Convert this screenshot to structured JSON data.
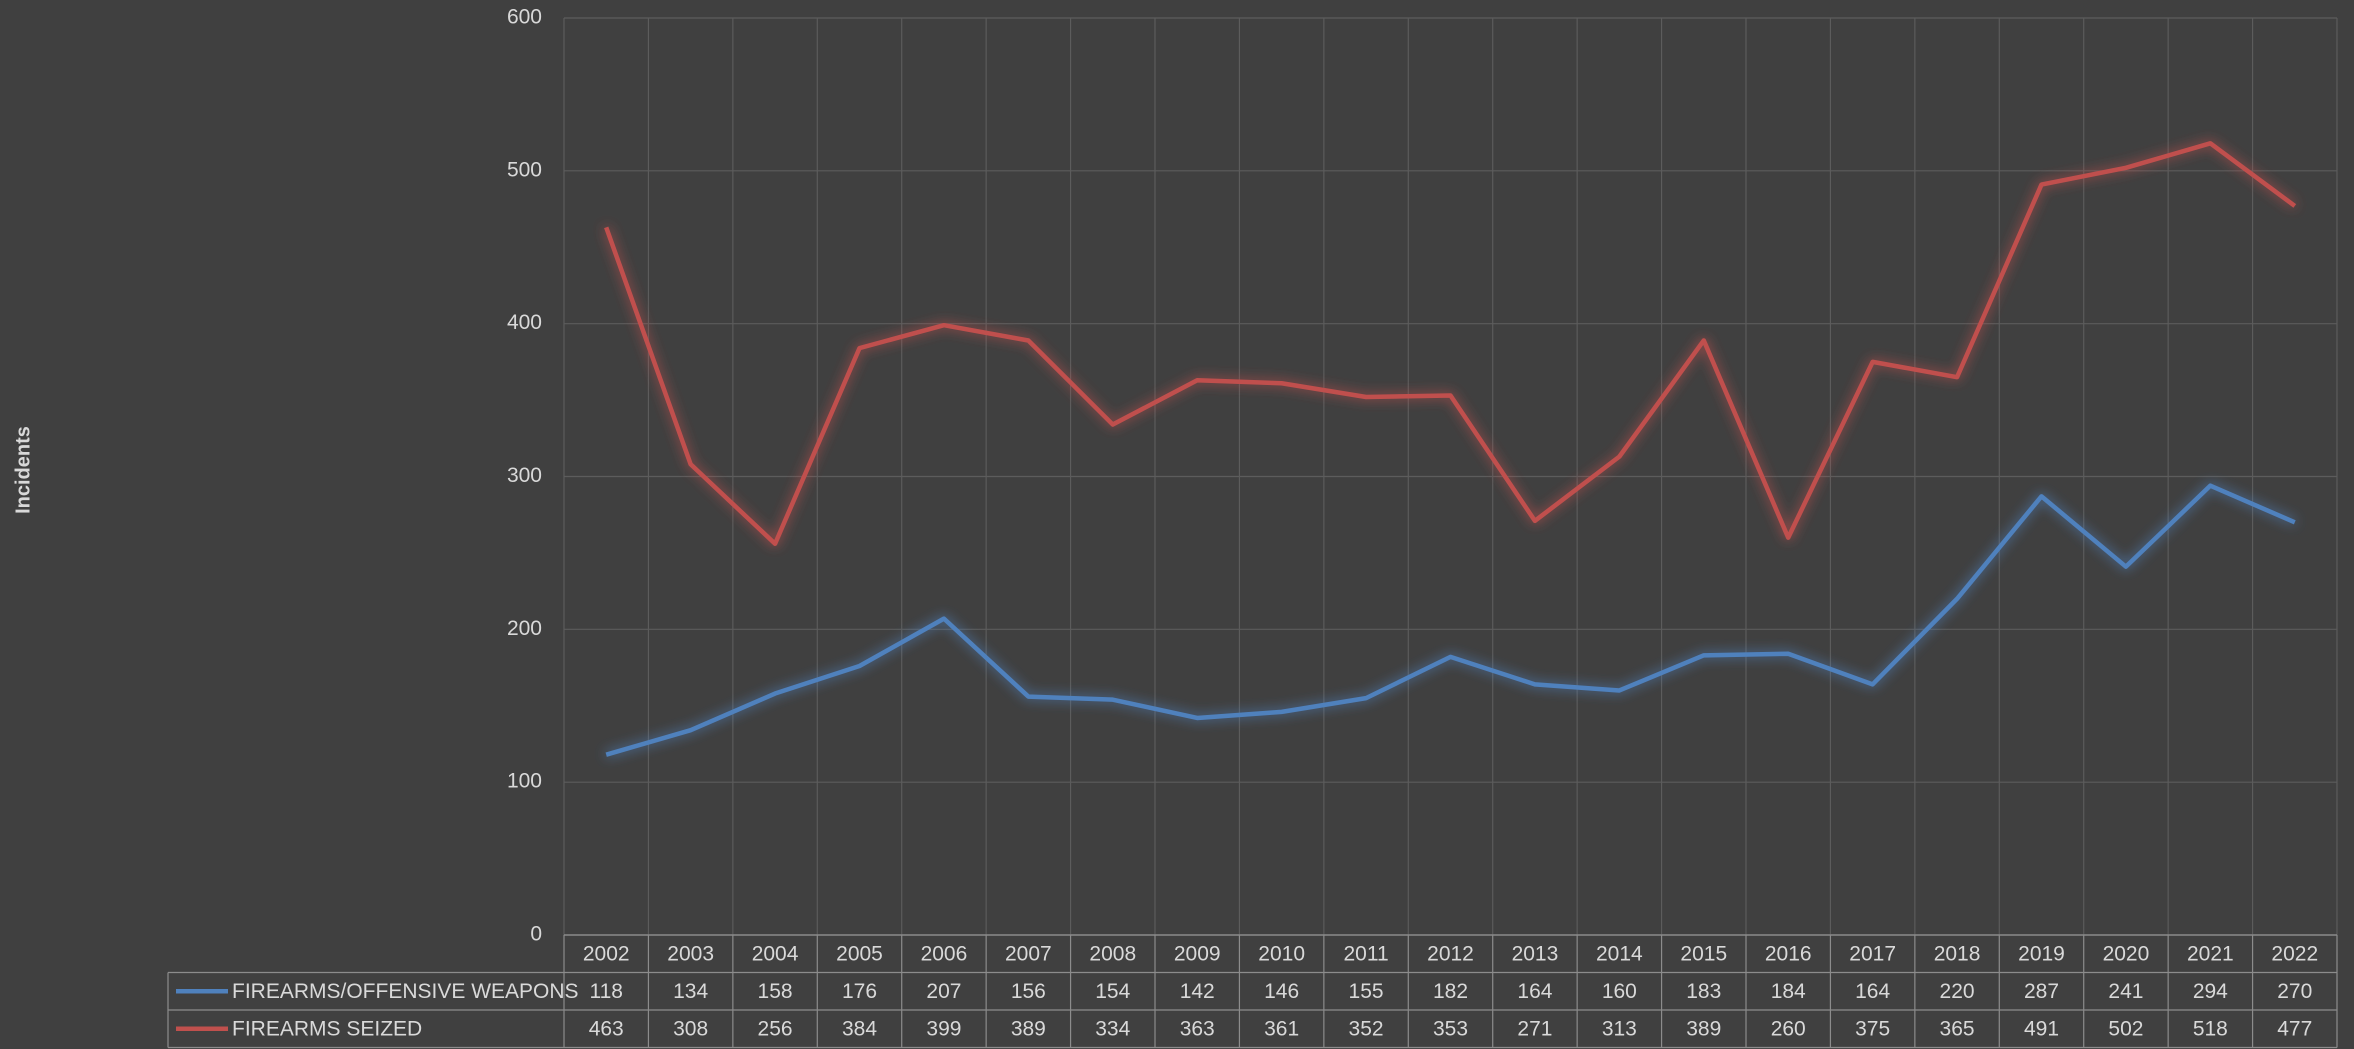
{
  "chart_data": {
    "type": "line",
    "y_label": "Incidents",
    "categories": [
      "2002",
      "2003",
      "2004",
      "2005",
      "2006",
      "2007",
      "2008",
      "2009",
      "2010",
      "2011",
      "2012",
      "2013",
      "2014",
      "2015",
      "2016",
      "2017",
      "2018",
      "2019",
      "2020",
      "2021",
      "2022"
    ],
    "series": [
      {
        "name": "FIREARMS/OFFENSIVE WEAPONS",
        "color": "#4f81bd",
        "values": [
          118,
          134,
          158,
          176,
          207,
          156,
          154,
          142,
          146,
          155,
          182,
          164,
          160,
          183,
          184,
          164,
          220,
          287,
          241,
          294,
          270
        ]
      },
      {
        "name": "FIREARMS SEIZED",
        "color": "#c0504d",
        "values": [
          463,
          308,
          256,
          384,
          399,
          389,
          334,
          363,
          361,
          352,
          353,
          271,
          313,
          389,
          260,
          375,
          365,
          491,
          502,
          518,
          477
        ]
      }
    ],
    "ylim": [
      0,
      600
    ],
    "yticks": [
      0,
      100,
      200,
      300,
      400,
      500,
      600
    ],
    "grid": true,
    "data_table": true
  }
}
